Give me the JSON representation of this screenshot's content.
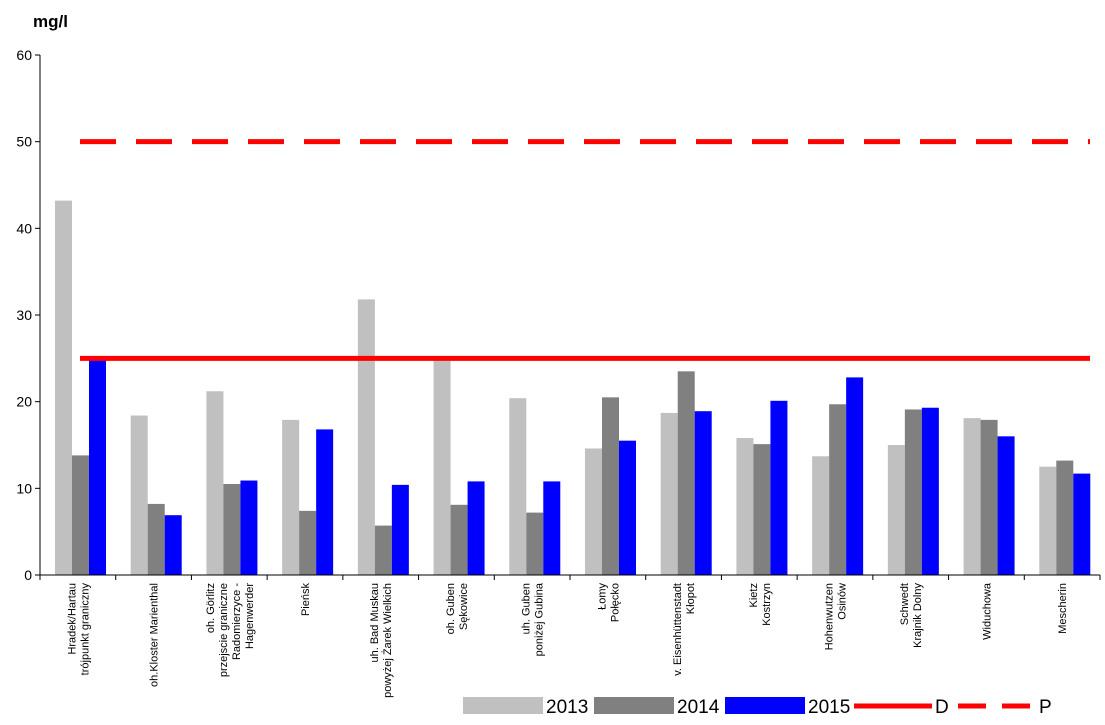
{
  "chart_data": {
    "type": "bar",
    "ylabel": "mg/l",
    "ylim": [
      0,
      60
    ],
    "yticks": [
      "0",
      "10",
      "20",
      "30",
      "40",
      "50",
      "60"
    ],
    "grid": false,
    "legend_position": "bottom-right",
    "categories": [
      [
        "Hradek/Hartau",
        "trójpunkt graniczny"
      ],
      [
        "oh.Kloster Marienthal"
      ],
      [
        "oh. Görlitz",
        "przejscie graniczne",
        "Radomierzyce -",
        "Hagenwerder"
      ],
      [
        "Pieńsk"
      ],
      [
        "uh. Bad Muskau",
        "powyżej Żarek Wielkich"
      ],
      [
        "oh. Guben",
        "Sękowice"
      ],
      [
        "uh. Guben",
        "poniżej Gubina"
      ],
      [
        "Łomy",
        "Połęcko"
      ],
      [
        "v. Eisenhüttenstadt",
        "Kłopot"
      ],
      [
        "Kietz",
        "Kostrzyn"
      ],
      [
        "Hohenwutzen",
        "Osinów"
      ],
      [
        "Schwedt",
        "Krajnik Dolny"
      ],
      [
        "Widuchowa"
      ],
      [
        "Mescherin"
      ]
    ],
    "series": [
      {
        "name": "2013",
        "color": "#c0c0c0",
        "values": [
          43.2,
          18.4,
          21.2,
          17.9,
          31.8,
          25.0,
          20.4,
          14.6,
          18.7,
          15.8,
          13.7,
          15.0,
          18.1,
          12.5
        ]
      },
      {
        "name": "2014",
        "color": "#808080",
        "values": [
          13.8,
          8.2,
          10.5,
          7.4,
          5.7,
          8.1,
          7.2,
          20.5,
          23.5,
          15.1,
          19.7,
          19.1,
          17.9,
          13.2
        ]
      },
      {
        "name": "2015",
        "color": "#0000ff",
        "values": [
          25.0,
          6.9,
          10.9,
          16.8,
          10.4,
          10.8,
          10.8,
          15.5,
          18.9,
          20.1,
          22.8,
          19.3,
          16.0,
          11.7
        ]
      }
    ],
    "reference_lines": [
      {
        "name": "D",
        "value": 25,
        "color": "#ff0000",
        "style": "solid"
      },
      {
        "name": "P",
        "value": 50,
        "color": "#ff0000",
        "style": "dashed"
      }
    ]
  }
}
